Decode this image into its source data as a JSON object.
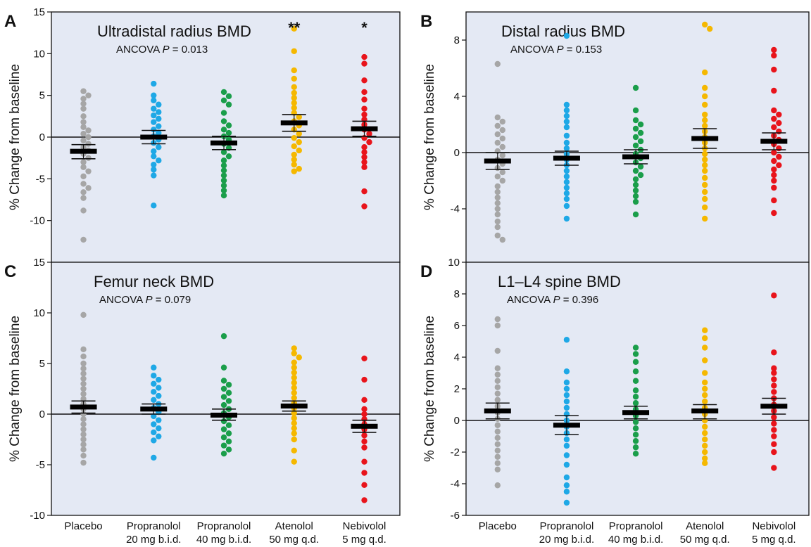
{
  "colors": {
    "panel_bg": "#e4e9f4",
    "Placebo": "#a6a6a6",
    "Propranolol 20": "#1ea8e6",
    "Propranolol 40": "#1a9e4a",
    "Atenolol": "#f5b800",
    "Nebivolol": "#e8141b"
  },
  "x_labels": [
    {
      "line1": "Placebo",
      "line2": ""
    },
    {
      "line1": "Propranolol",
      "line2": "20 mg b.i.d."
    },
    {
      "line1": "Propranolol",
      "line2": "40 mg b.i.d."
    },
    {
      "line1": "Atenolol",
      "line2": "50 mg q.d."
    },
    {
      "line1": "Nebivolol",
      "line2": "5 mg q.d."
    }
  ],
  "chart_data": [
    {
      "type": "scatter",
      "panel": "A",
      "title": "Ultradistal radius BMD",
      "stat_label": "ANCOVA",
      "stat_p": "P",
      "stat_value": " = 0.013",
      "ylabel": "% Change from baseline",
      "ylim": [
        -15,
        15
      ],
      "yticks": [
        15,
        10,
        5,
        0,
        -5,
        -10
      ],
      "significance": [
        {
          "group": 3,
          "text": "**"
        },
        {
          "group": 4,
          "text": "*"
        }
      ],
      "groups": [
        {
          "name": "Placebo",
          "mean": -1.7,
          "sem_low": -2.6,
          "sem_high": -0.9,
          "points": [
            5.5,
            5.0,
            4.6,
            4.0,
            3.4,
            2.5,
            1.8,
            1.2,
            0.8,
            0.4,
            0.0,
            -0.4,
            -0.8,
            -1.2,
            -1.6,
            -2.0,
            -2.5,
            -3.0,
            -3.6,
            -4.1,
            -4.7,
            -5.6,
            -6.1,
            -6.6,
            -7.3,
            -8.8,
            -12.3
          ]
        },
        {
          "name": "Propranolol 20 mg b.i.d.",
          "mean": 0.0,
          "sem_low": -0.8,
          "sem_high": 0.8,
          "points": [
            6.4,
            5.0,
            4.4,
            3.9,
            3.4,
            3.0,
            2.6,
            2.2,
            1.8,
            1.3,
            0.9,
            0.5,
            0.1,
            -0.3,
            -0.7,
            -1.2,
            -1.7,
            -2.3,
            -2.8,
            -3.3,
            -3.9,
            -4.6,
            -8.2
          ]
        },
        {
          "name": "Propranolol 40 mg b.i.d.",
          "mean": -0.7,
          "sem_low": -1.5,
          "sem_high": 0.1,
          "points": [
            5.4,
            4.9,
            4.4,
            3.9,
            2.9,
            1.9,
            1.4,
            0.9,
            0.5,
            0.1,
            -0.3,
            -0.8,
            -1.3,
            -1.8,
            -2.3,
            -2.8,
            -3.4,
            -4.0,
            -4.6,
            -5.2,
            -5.8,
            -6.4,
            -7.0
          ]
        },
        {
          "name": "Atenolol 50 mg q.d.",
          "mean": 1.7,
          "sem_low": 0.7,
          "sem_high": 2.7,
          "points": [
            13.0,
            10.3,
            8.0,
            7.0,
            6.0,
            5.3,
            4.7,
            4.1,
            3.5,
            2.9,
            2.4,
            1.9,
            1.4,
            0.9,
            0.4,
            -0.1,
            -0.6,
            -1.1,
            -1.6,
            -2.1,
            -2.7,
            -3.3,
            -3.8,
            -4.1
          ]
        },
        {
          "name": "Nebivolol 5 mg q.d.",
          "mean": 1.0,
          "sem_low": 0.1,
          "sem_high": 1.9,
          "points": [
            9.6,
            8.8,
            6.8,
            5.4,
            4.5,
            3.4,
            2.7,
            2.1,
            1.5,
            0.9,
            0.4,
            -0.1,
            -0.6,
            -1.2,
            -1.8,
            -2.4,
            -3.0,
            -3.6,
            -6.5,
            -8.3
          ]
        }
      ]
    },
    {
      "type": "scatter",
      "panel": "B",
      "title": "Distal radius BMD",
      "stat_label": "ANCOVA",
      "stat_p": "P",
      "stat_value": " = 0.153",
      "ylabel": "% Change from baseline",
      "ylim": [
        -7.8,
        10
      ],
      "yticks": [
        8,
        4,
        0,
        -4
      ],
      "significance": [],
      "groups": [
        {
          "name": "Placebo",
          "mean": -0.6,
          "sem_low": -1.2,
          "sem_high": 0.0,
          "points": [
            6.3,
            2.5,
            2.2,
            1.9,
            1.6,
            1.3,
            1.0,
            0.7,
            0.4,
            0.1,
            -0.2,
            -0.5,
            -0.8,
            -1.1,
            -1.4,
            -1.7,
            -2.0,
            -2.4,
            -2.8,
            -3.2,
            -3.6,
            -4.0,
            -4.4,
            -4.9,
            -5.3,
            -5.9,
            -6.2
          ]
        },
        {
          "name": "Propranolol 20 mg b.i.d.",
          "mean": -0.4,
          "sem_low": -0.9,
          "sem_high": 0.1,
          "points": [
            8.3,
            3.4,
            3.0,
            2.6,
            2.2,
            1.8,
            1.2,
            0.7,
            0.3,
            -0.1,
            -0.5,
            -0.9,
            -1.3,
            -1.7,
            -2.1,
            -2.5,
            -2.9,
            -3.3,
            -3.8,
            -4.7
          ]
        },
        {
          "name": "Propranolol 40 mg b.i.d.",
          "mean": -0.3,
          "sem_low": -0.8,
          "sem_high": 0.2,
          "points": [
            4.6,
            3.0,
            2.3,
            2.0,
            1.7,
            1.4,
            1.1,
            0.8,
            0.5,
            0.2,
            -0.1,
            -0.4,
            -0.7,
            -1.0,
            -1.3,
            -1.6,
            -1.9,
            -2.3,
            -2.7,
            -3.1,
            -3.5,
            -4.4
          ]
        },
        {
          "name": "Atenolol 50 mg q.d.",
          "mean": 1.0,
          "sem_low": 0.3,
          "sem_high": 1.7,
          "points": [
            9.1,
            8.8,
            5.7,
            4.6,
            4.0,
            3.4,
            2.7,
            2.3,
            1.9,
            1.5,
            1.1,
            0.7,
            0.3,
            -0.1,
            -0.5,
            -0.9,
            -1.3,
            -1.8,
            -2.3,
            -2.8,
            -3.3,
            -3.9,
            -4.7
          ]
        },
        {
          "name": "Nebivolol 5 mg q.d.",
          "mean": 0.8,
          "sem_low": 0.2,
          "sem_high": 1.4,
          "points": [
            7.3,
            6.9,
            5.9,
            4.4,
            3.0,
            2.7,
            2.4,
            2.1,
            1.8,
            1.5,
            1.2,
            0.9,
            0.6,
            0.3,
            0.0,
            -0.3,
            -0.6,
            -0.9,
            -1.2,
            -1.6,
            -2.0,
            -2.5,
            -3.4,
            -4.3
          ]
        }
      ]
    },
    {
      "type": "scatter",
      "panel": "C",
      "title": "Femur neck BMD",
      "stat_label": "ANCOVA",
      "stat_p": "P",
      "stat_value": " = 0.079",
      "ylabel": "% Change from baseline",
      "ylim": [
        -10,
        15
      ],
      "yticks": [
        15,
        10,
        5,
        0,
        -5,
        -10
      ],
      "significance": [],
      "groups": [
        {
          "name": "Placebo",
          "mean": 0.7,
          "sem_low": 0.1,
          "sem_high": 1.3,
          "points": [
            9.8,
            6.4,
            5.7,
            5.0,
            4.5,
            4.0,
            3.5,
            3.0,
            2.5,
            2.0,
            1.5,
            1.0,
            0.5,
            0.0,
            -0.5,
            -1.0,
            -1.5,
            -2.0,
            -2.5,
            -3.0,
            -3.5,
            -4.1,
            -4.8
          ]
        },
        {
          "name": "Propranolol 20 mg b.i.d.",
          "mean": 0.5,
          "sem_low": 0.0,
          "sem_high": 1.0,
          "points": [
            4.6,
            3.8,
            3.4,
            3.0,
            2.6,
            2.2,
            1.8,
            1.4,
            1.0,
            0.6,
            0.2,
            -0.2,
            -0.6,
            -1.0,
            -1.4,
            -1.8,
            -2.2,
            -2.6,
            -4.3
          ]
        },
        {
          "name": "Propranolol 40 mg b.i.d.",
          "mean": -0.1,
          "sem_low": -0.6,
          "sem_high": 0.5,
          "points": [
            7.7,
            4.6,
            3.3,
            2.9,
            2.5,
            2.1,
            1.7,
            1.3,
            0.9,
            0.5,
            0.1,
            -0.3,
            -0.7,
            -1.1,
            -1.5,
            -1.9,
            -2.3,
            -2.7,
            -3.1,
            -3.5,
            -3.9
          ]
        },
        {
          "name": "Atenolol 50 mg q.d.",
          "mean": 0.8,
          "sem_low": 0.3,
          "sem_high": 1.3,
          "points": [
            6.5,
            6.0,
            5.6,
            5.1,
            4.6,
            4.1,
            3.6,
            3.1,
            2.6,
            2.1,
            1.6,
            1.1,
            0.6,
            0.1,
            -0.4,
            -0.9,
            -1.4,
            -1.9,
            -2.5,
            -3.6,
            -4.7
          ]
        },
        {
          "name": "Nebivolol 5 mg q.d.",
          "mean": -1.2,
          "sem_low": -1.8,
          "sem_high": -0.6,
          "points": [
            5.5,
            3.4,
            1.4,
            0.5,
            0.0,
            -0.5,
            -1.0,
            -1.5,
            -2.1,
            -2.7,
            -3.3,
            -4.7,
            -5.8,
            -7.0,
            -8.5
          ]
        }
      ]
    },
    {
      "type": "scatter",
      "panel": "D",
      "title": "L1–L4 spine BMD",
      "stat_label": "ANCOVA",
      "stat_p": "P",
      "stat_value": " = 0.396",
      "ylabel": "% Change from baseline",
      "ylim": [
        -6,
        10
      ],
      "yticks": [
        10,
        8,
        6,
        4,
        2,
        0,
        -2,
        -4,
        -6
      ],
      "significance": [],
      "groups": [
        {
          "name": "Placebo",
          "mean": 0.6,
          "sem_low": 0.1,
          "sem_high": 1.1,
          "points": [
            6.4,
            6.0,
            4.4,
            3.3,
            2.9,
            2.5,
            2.1,
            1.7,
            1.3,
            0.9,
            0.5,
            0.1,
            -0.3,
            -0.7,
            -1.1,
            -1.5,
            -1.9,
            -2.3,
            -2.7,
            -3.1,
            -4.1
          ]
        },
        {
          "name": "Propranolol 20 mg b.i.d.",
          "mean": -0.3,
          "sem_low": -0.9,
          "sem_high": 0.3,
          "points": [
            5.1,
            3.1,
            2.4,
            2.0,
            1.6,
            1.2,
            0.8,
            0.4,
            0.0,
            -0.4,
            -0.8,
            -1.2,
            -1.6,
            -2.2,
            -2.8,
            -3.6,
            -4.1,
            -4.5,
            -5.2
          ]
        },
        {
          "name": "Propranolol 40 mg b.i.d.",
          "mean": 0.5,
          "sem_low": 0.1,
          "sem_high": 0.9,
          "points": [
            4.6,
            4.2,
            3.7,
            3.1,
            2.5,
            1.9,
            1.5,
            1.1,
            0.7,
            0.3,
            -0.1,
            -0.5,
            -0.9,
            -1.3,
            -1.7,
            -2.1
          ]
        },
        {
          "name": "Atenolol 50 mg q.d.",
          "mean": 0.6,
          "sem_low": 0.1,
          "sem_high": 1.0,
          "points": [
            5.7,
            5.2,
            4.6,
            3.8,
            3.0,
            2.4,
            2.0,
            1.6,
            1.2,
            0.8,
            0.4,
            0.0,
            -0.4,
            -0.8,
            -1.2,
            -1.6,
            -2.0,
            -2.4,
            -2.7
          ]
        },
        {
          "name": "Nebivolol 5 mg q.d.",
          "mean": 0.9,
          "sem_low": 0.4,
          "sem_high": 1.4,
          "points": [
            7.9,
            4.3,
            3.3,
            3.0,
            2.6,
            2.2,
            1.8,
            1.4,
            1.0,
            0.6,
            0.2,
            -0.2,
            -0.6,
            -1.0,
            -1.5,
            -2.0,
            -3.0
          ]
        }
      ]
    }
  ]
}
